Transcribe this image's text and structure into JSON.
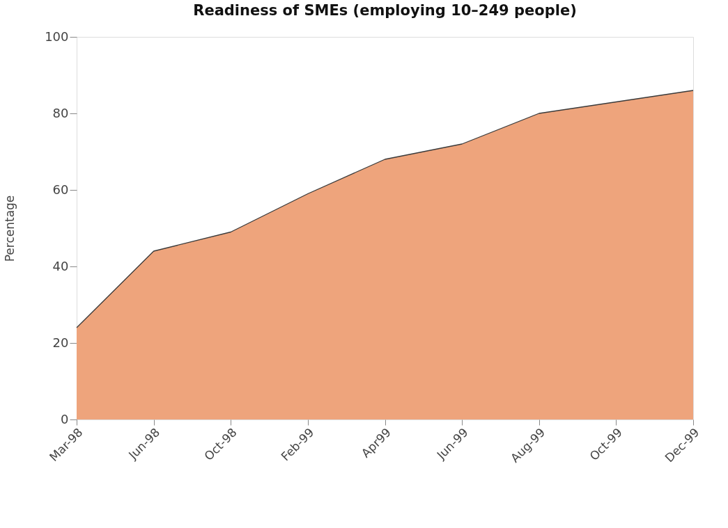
{
  "chart_data": {
    "type": "area",
    "title": "Readiness of SMEs (employing 10–249 people)",
    "ylabel": "Percentage",
    "categories": [
      "Mar-98",
      "Jun-98",
      "Oct-98",
      "Feb-99",
      "Apr99",
      "Jun-99",
      "Aug-99",
      "Oct-99",
      "Dec-99"
    ],
    "values": [
      24,
      44,
      49,
      59,
      68,
      72,
      80,
      83,
      86
    ],
    "color": "#eea47c",
    "ylim": [
      0,
      100
    ],
    "yticks": [
      0,
      20,
      40,
      60,
      80,
      100
    ],
    "grid": false
  }
}
